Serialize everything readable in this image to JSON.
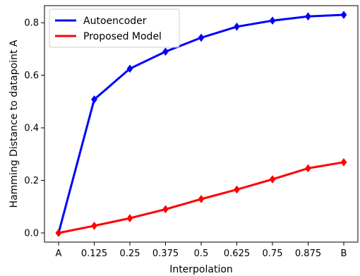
{
  "chart_data": {
    "type": "line",
    "title": "",
    "xlabel": "Interpolation",
    "ylabel": "Hamming Distance to datapoint A",
    "categories": [
      "A",
      "0.125",
      "0.25",
      "0.375",
      "0.5",
      "0.625",
      "0.75",
      "0.875",
      "B"
    ],
    "yticks": [
      "0.0",
      "0.2",
      "0.4",
      "0.6",
      "0.8"
    ],
    "ylim": [
      -0.035,
      0.865
    ],
    "grid": false,
    "legend_position": "top-left",
    "series": [
      {
        "name": "Autoencoder",
        "color": "#0000ff",
        "marker": "diamond",
        "values": [
          0.0,
          0.508,
          0.625,
          0.69,
          0.743,
          0.785,
          0.808,
          0.824,
          0.83
        ]
      },
      {
        "name": "Proposed Model",
        "color": "#ff0000",
        "marker": "diamond",
        "values": [
          0.0,
          0.027,
          0.056,
          0.09,
          0.129,
          0.165,
          0.204,
          0.246,
          0.269
        ]
      }
    ]
  }
}
